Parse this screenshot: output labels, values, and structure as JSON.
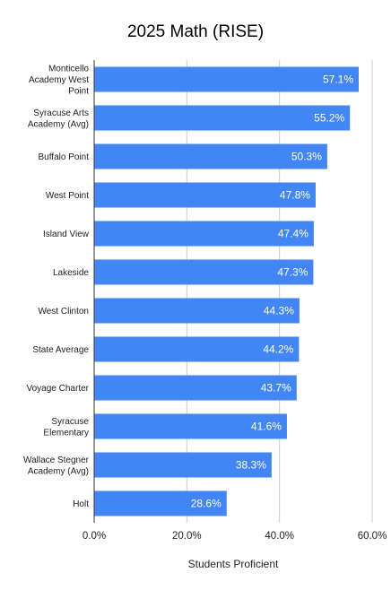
{
  "chart_data": {
    "type": "bar",
    "orientation": "horizontal",
    "title": "2025 Math (RISE)",
    "xlabel": "Students Proficient",
    "ylabel": "",
    "categories": [
      "Monticello Academy West Point",
      "Syracuse Arts Academy (Avg)",
      "Buffalo Point",
      "West Point",
      "Island View",
      "Lakeside",
      "West Clinton",
      "State Average",
      "Voyage Charter",
      "Syracuse Elementary",
      "Wallace Stegner Academy (Avg)",
      "Holt"
    ],
    "values": [
      57.1,
      55.2,
      50.3,
      47.8,
      47.4,
      47.3,
      44.3,
      44.2,
      43.7,
      41.6,
      38.3,
      28.6
    ],
    "data_labels": [
      "57.1%",
      "55.2%",
      "50.3%",
      "47.8%",
      "47.4%",
      "47.3%",
      "44.3%",
      "44.2%",
      "43.7%",
      "41.6%",
      "38.3%",
      "28.6%"
    ],
    "xlim": [
      0,
      60
    ],
    "x_ticks": [
      0,
      20,
      40,
      60
    ],
    "x_tick_labels": [
      "0.0%",
      "20.0%",
      "40.0%",
      "60.0%"
    ],
    "grid": true,
    "legend": "none",
    "colors": {
      "bar": "#4285f4",
      "grid": "#cccccc",
      "axis": "#333333"
    }
  }
}
